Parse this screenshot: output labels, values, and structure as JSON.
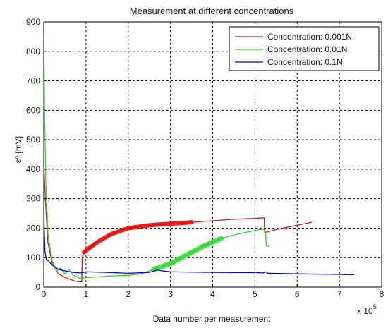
{
  "chart_data": {
    "type": "line",
    "title": "Measurement at different concentrations",
    "xlabel": "Data number per measurement",
    "ylabel": "ε⁰ [mV]",
    "x_multiplier": "x 10",
    "x_multiplier_exp": "5",
    "xlim": [
      0,
      8
    ],
    "ylim": [
      0,
      900
    ],
    "xticks": [
      "0",
      "1",
      "2",
      "3",
      "4",
      "5",
      "6",
      "7",
      "8"
    ],
    "yticks": [
      "0",
      "100",
      "200",
      "300",
      "400",
      "500",
      "600",
      "700",
      "800",
      "900"
    ],
    "grid": true,
    "legend_position": "top-right",
    "series": [
      {
        "name": "Concentration: 0.001N",
        "color": "#b22222",
        "band_color": "#ff0000",
        "band_width": 6,
        "points": [
          [
            0,
            420
          ],
          [
            0.04,
            290
          ],
          [
            0.1,
            150
          ],
          [
            0.2,
            80
          ],
          [
            0.35,
            45
          ],
          [
            0.55,
            30
          ],
          [
            0.75,
            20
          ],
          [
            0.88,
            18
          ],
          [
            0.9,
            18
          ],
          [
            0.91,
            100
          ],
          [
            0.95,
            118
          ],
          [
            1.1,
            135
          ],
          [
            1.3,
            155
          ],
          [
            1.6,
            180
          ],
          [
            2.0,
            200
          ],
          [
            2.5,
            210
          ],
          [
            3.0,
            215
          ],
          [
            3.5,
            220
          ],
          [
            4.0,
            225
          ],
          [
            4.5,
            230
          ],
          [
            5.0,
            233
          ],
          [
            5.2,
            235
          ],
          [
            5.22,
            235
          ],
          [
            5.23,
            185
          ],
          [
            5.5,
            195
          ],
          [
            6.0,
            210
          ],
          [
            6.35,
            220
          ]
        ],
        "band_range": [
          0.92,
          3.8
        ]
      },
      {
        "name": "Concentration: 0.01N",
        "color": "#33cc33",
        "band_color": "#33dd33",
        "band_width": 7,
        "points": [
          [
            0,
            880
          ],
          [
            0.02,
            600
          ],
          [
            0.05,
            350
          ],
          [
            0.1,
            180
          ],
          [
            0.2,
            90
          ],
          [
            0.3,
            55
          ],
          [
            0.4,
            65
          ],
          [
            0.5,
            45
          ],
          [
            0.6,
            60
          ],
          [
            0.7,
            40
          ],
          [
            0.85,
            30
          ],
          [
            1.0,
            32
          ],
          [
            1.3,
            35
          ],
          [
            1.6,
            38
          ],
          [
            2.0,
            40
          ],
          [
            2.3,
            45
          ],
          [
            2.6,
            60
          ],
          [
            3.0,
            80
          ],
          [
            3.4,
            110
          ],
          [
            3.8,
            140
          ],
          [
            4.2,
            165
          ],
          [
            4.6,
            180
          ],
          [
            5.0,
            192
          ],
          [
            5.2,
            197
          ],
          [
            5.25,
            190
          ],
          [
            5.27,
            140
          ],
          [
            5.35,
            138
          ]
        ],
        "band_range": [
          2.6,
          4.4
        ]
      },
      {
        "name": "Concentration: 0.1N",
        "color": "#0000cc",
        "points": [
          [
            0,
            270
          ],
          [
            0.01,
            200
          ],
          [
            0.03,
            120
          ],
          [
            0.06,
            95
          ],
          [
            0.1,
            90
          ],
          [
            0.2,
            75
          ],
          [
            0.35,
            60
          ],
          [
            0.5,
            55
          ],
          [
            0.7,
            50
          ],
          [
            0.85,
            48
          ],
          [
            1.0,
            52
          ],
          [
            1.5,
            50
          ],
          [
            2.0,
            47
          ],
          [
            2.5,
            50
          ],
          [
            2.7,
            58
          ],
          [
            2.8,
            55
          ],
          [
            3.0,
            52
          ],
          [
            4.0,
            50
          ],
          [
            5.0,
            49
          ],
          [
            5.2,
            48
          ],
          [
            5.25,
            52
          ],
          [
            5.3,
            47
          ],
          [
            6.0,
            45
          ],
          [
            7.0,
            43
          ],
          [
            7.35,
            42
          ]
        ]
      }
    ]
  }
}
